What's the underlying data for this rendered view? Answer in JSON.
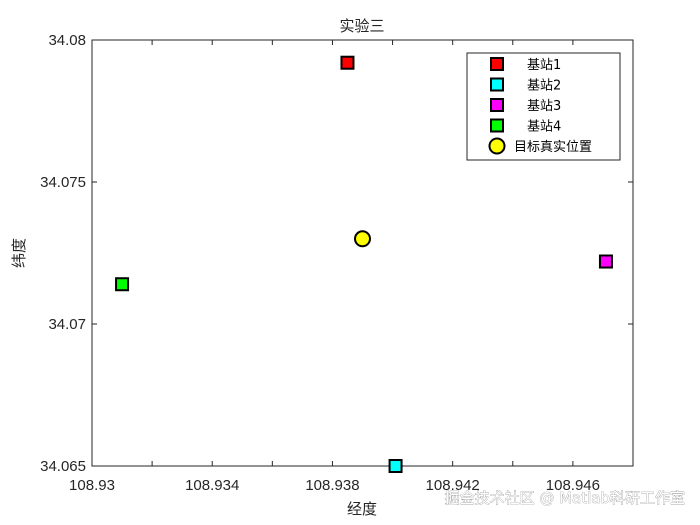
{
  "chart_data": {
    "type": "scatter",
    "title": "实验三",
    "xlabel": "经度",
    "ylabel": "纬度",
    "xlim": [
      108.93,
      108.948
    ],
    "ylim": [
      34.065,
      34.08
    ],
    "xticks": [
      "108.93",
      "108.934",
      "108.938",
      "108.942",
      "108.946"
    ],
    "yticks": [
      "34.065",
      "34.07",
      "34.075",
      "34.08"
    ],
    "grid": false,
    "legend_position": "top-right",
    "series": [
      {
        "name": "基站1",
        "marker": "square",
        "color": "#ff0000",
        "x": [
          108.9385
        ],
        "y": [
          34.0792
        ]
      },
      {
        "name": "基站2",
        "marker": "square",
        "color": "#00ffff",
        "x": [
          108.9401
        ],
        "y": [
          34.065
        ]
      },
      {
        "name": "基站3",
        "marker": "square",
        "color": "#ff00ff",
        "x": [
          108.9471
        ],
        "y": [
          34.0722
        ]
      },
      {
        "name": "基站4",
        "marker": "square",
        "color": "#00ff00",
        "x": [
          108.931
        ],
        "y": [
          34.0714
        ]
      },
      {
        "name": "目标真实位置",
        "marker": "circle",
        "color": "#ffff00",
        "x": [
          108.939
        ],
        "y": [
          34.073
        ]
      }
    ]
  },
  "watermark": "掘金技术社区 @ Matlab科研工作室"
}
